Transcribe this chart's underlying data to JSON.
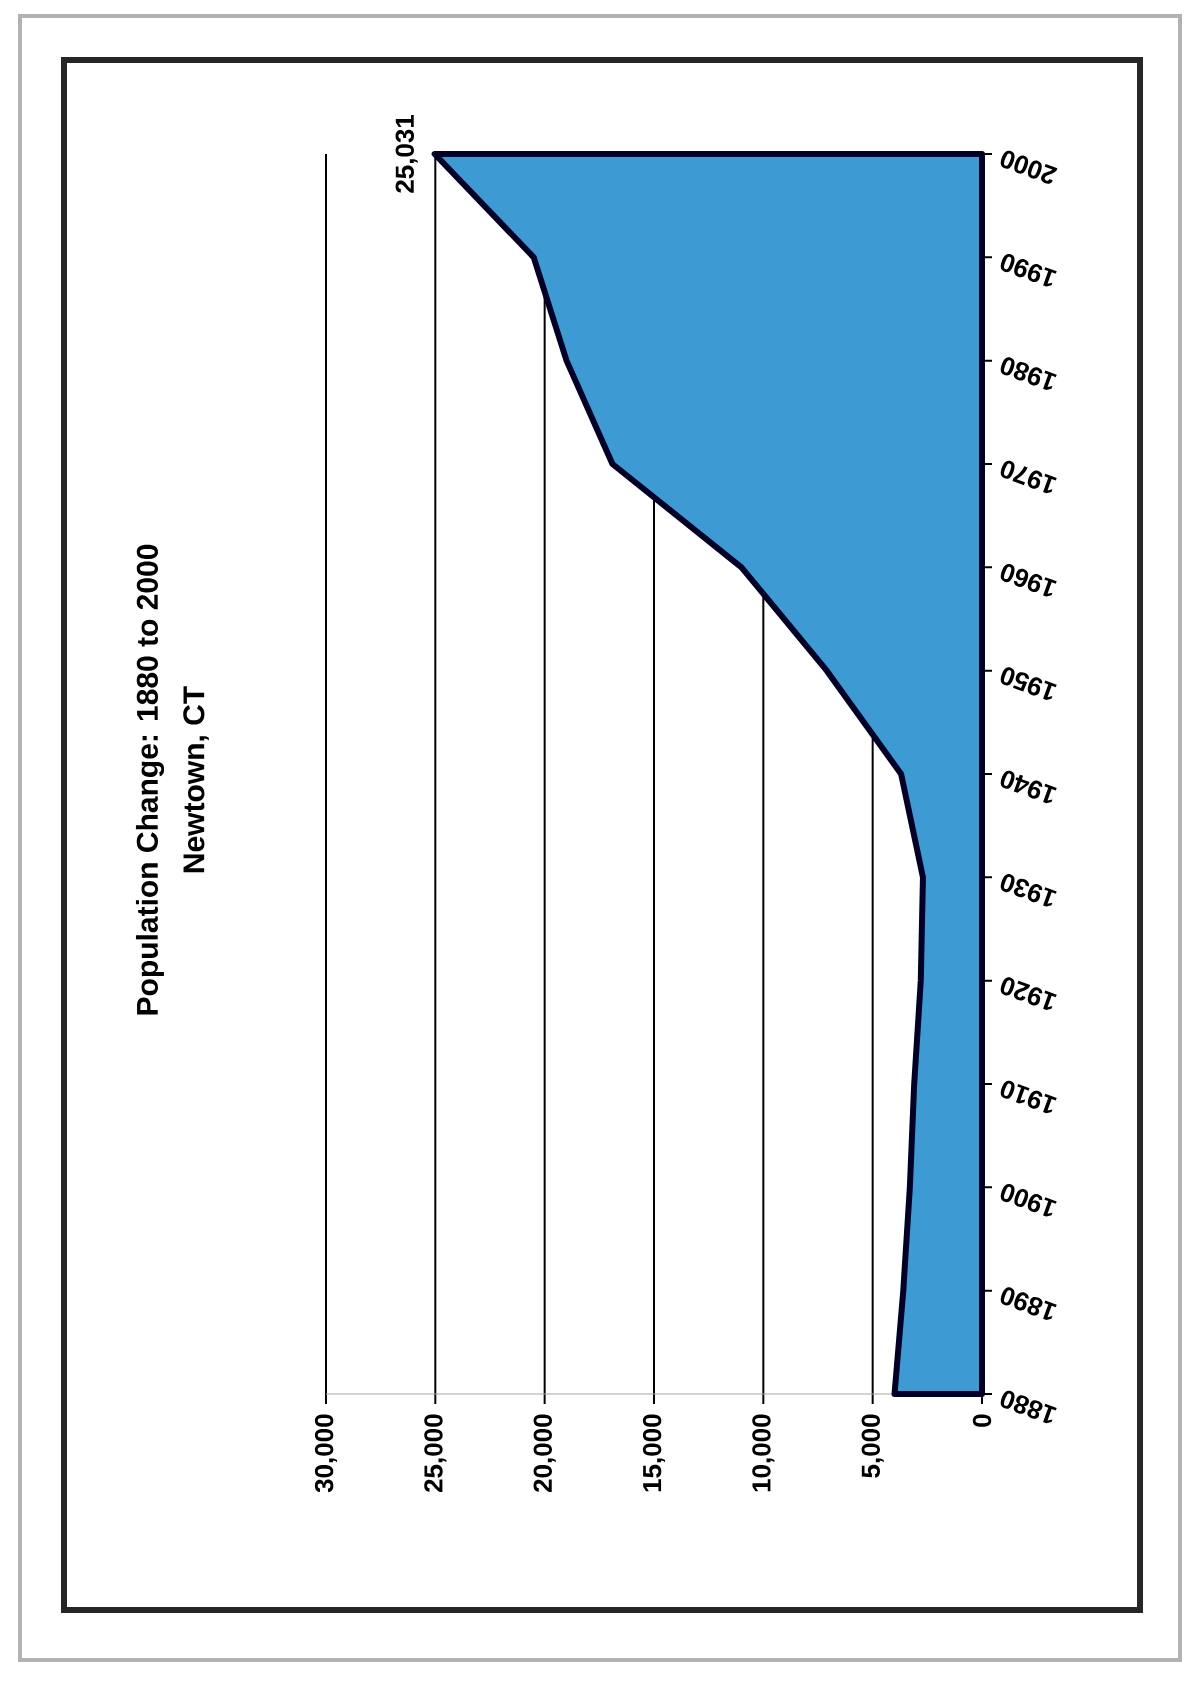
{
  "chart_data": {
    "type": "area",
    "title": "Population Change: 1880 to 2000",
    "subtitle": "Newtown, CT",
    "orientation": "horizontal",
    "x": [
      1880,
      1890,
      1900,
      1910,
      1920,
      1930,
      1940,
      1950,
      1960,
      1970,
      1980,
      1990,
      2000
    ],
    "series": [
      {
        "color": "#3d9ad3",
        "values": [
          4000,
          3600,
          3300,
          3100,
          2800,
          2700,
          3700,
          7100,
          11000,
          16900,
          19000,
          20500,
          25031
        ]
      }
    ],
    "ylim": [
      1880,
      2000
    ],
    "yticks": [
      1880,
      1890,
      1900,
      1910,
      1920,
      1930,
      1940,
      1950,
      1960,
      1970,
      1980,
      1990,
      2000
    ],
    "xlim": [
      30000,
      0
    ],
    "xticks": [
      0,
      {
        "value": 5000,
        "label": "5,000"
      },
      {
        "value": 10000,
        "label": "10,000"
      },
      {
        "value": 15000,
        "label": "15,000"
      },
      {
        "value": 20000,
        "label": "20,000"
      },
      {
        "value": 25000,
        "label": "25,000"
      },
      {
        "value": 30000,
        "label": "30,000"
      }
    ],
    "grid": "x",
    "annotations": [
      {
        "text": "25,031",
        "x": 25031,
        "y": 2000
      }
    ]
  }
}
